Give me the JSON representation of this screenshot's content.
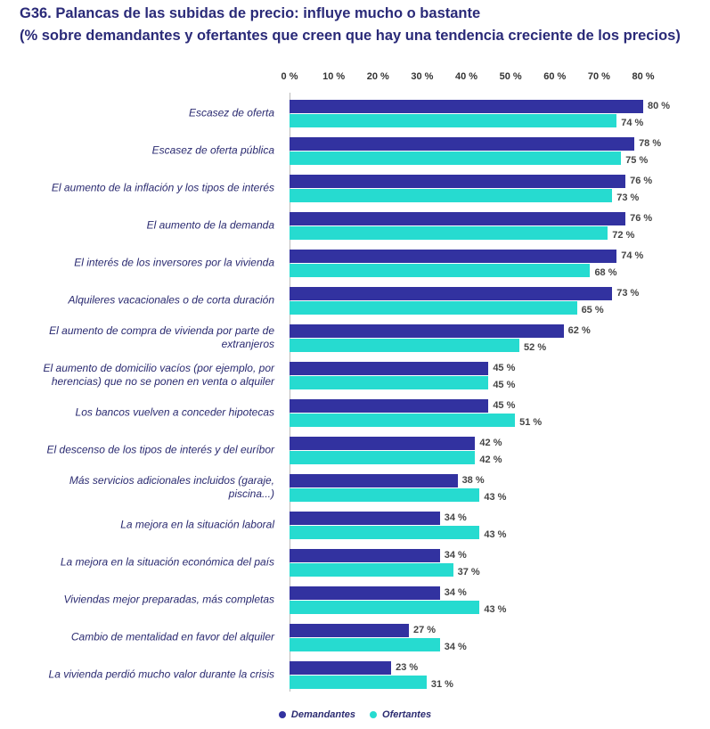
{
  "chart_data": {
    "type": "barh",
    "title": "G36. Palancas de las subidas de precio: influye mucho o bastante",
    "subtitle": "(% sobre demandantes y ofertantes que creen que hay una tendencia creciente de los precios)",
    "categories": [
      "Escasez de oferta",
      "Escasez de oferta pública",
      "El aumento de la inflación y los tipos de interés",
      "El aumento de la demanda",
      "El interés de los inversores por la vivienda",
      "Alquileres vacacionales o de corta duración",
      "El aumento de compra de vivienda por parte de extranjeros",
      "El aumento de domicilio vacíos (por ejemplo, por herencias) que no se ponen en venta o alquiler",
      "Los bancos vuelven a conceder hipotecas",
      "El descenso de los tipos de interés y del euríbor",
      "Más servicios adicionales incluidos (garaje, piscina...)",
      "La mejora en la situación laboral",
      "La mejora en la situación económica del país",
      "Viviendas mejor preparadas, más completas",
      "Cambio de mentalidad en favor del alquiler",
      "La vivienda perdió mucho valor durante la crisis"
    ],
    "series": [
      {
        "name": "Demandantes",
        "color": "#3232a0",
        "values": [
          80,
          78,
          76,
          76,
          74,
          73,
          62,
          45,
          45,
          42,
          38,
          34,
          34,
          34,
          27,
          23
        ],
        "value_labels": [
          "80 %",
          "78 %",
          "76 %",
          "76 %",
          "74 %",
          "73 %",
          "62 %",
          "45 %",
          "45 %",
          "42 %",
          "38 %",
          "34 %",
          "34 %",
          "34 %",
          "27 %",
          "23 %"
        ]
      },
      {
        "name": "Ofertantes",
        "color": "#26dbd0",
        "values": [
          74,
          75,
          73,
          72,
          68,
          65,
          52,
          45,
          51,
          42,
          43,
          43,
          37,
          43,
          34,
          31
        ],
        "value_labels": [
          "74 %",
          "75 %",
          "73 %",
          "72 %",
          "68 %",
          "65 %",
          "52 %",
          "45 %",
          "51 %",
          "42 %",
          "43 %",
          "43 %",
          "37 %",
          "43 %",
          "34 %",
          "31 %"
        ]
      }
    ],
    "xlim": [
      0,
      80
    ],
    "xticks": [
      {
        "value": 0,
        "label": "0 %"
      },
      {
        "value": 10,
        "label": "10 %"
      },
      {
        "value": 20,
        "label": "20 %"
      },
      {
        "value": 30,
        "label": "30 %"
      },
      {
        "value": 40,
        "label": "40 %"
      },
      {
        "value": 50,
        "label": "50 %"
      },
      {
        "value": 60,
        "label": "60 %"
      },
      {
        "value": 70,
        "label": "70 %"
      },
      {
        "value": 80,
        "label": "80 %"
      }
    ],
    "grid": false,
    "legend": "bottom"
  }
}
